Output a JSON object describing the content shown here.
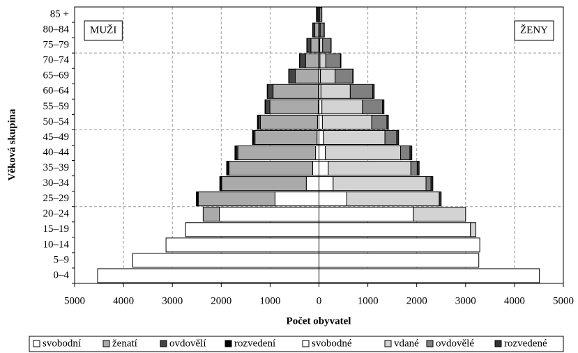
{
  "chart_data": {
    "type": "pyramid",
    "y_axis_label": "Věková skupina",
    "x_axis_label": "Počet obyvatel",
    "annotations": [
      {
        "text": "MUŽI",
        "side": "left"
      },
      {
        "text": "ŽENY",
        "side": "right"
      }
    ],
    "categories": [
      "0–4",
      "5–9",
      "10–14",
      "15–19",
      "20–24",
      "25–29",
      "30–34",
      "35–39",
      "40–44",
      "45–49",
      "50–54",
      "55–59",
      "60–64",
      "65–69",
      "70–74",
      "75–79",
      "80–84",
      "85 +"
    ],
    "series": [
      {
        "name": "svobodní",
        "color": "#ffffff",
        "side": "left",
        "values": [
          4530,
          3810,
          3130,
          2730,
          2040,
          900,
          260,
          130,
          70,
          40,
          30,
          15,
          10,
          5,
          5,
          5,
          5,
          5
        ]
      },
      {
        "name": "ženatí",
        "color": "#aaaaaa",
        "side": "left",
        "values": [
          0,
          0,
          0,
          0,
          330,
          1570,
          1730,
          1710,
          1590,
          1270,
          1170,
          990,
          930,
          480,
          270,
          160,
          80,
          20
        ]
      },
      {
        "name": "ovdovělí",
        "color": "#444444",
        "side": "left",
        "values": [
          0,
          0,
          0,
          0,
          0,
          10,
          10,
          10,
          30,
          30,
          40,
          90,
          110,
          130,
          120,
          80,
          40,
          30
        ]
      },
      {
        "name": "rozvedení",
        "color": "#000000",
        "side": "left",
        "values": [
          0,
          0,
          0,
          0,
          0,
          30,
          30,
          40,
          30,
          20,
          20,
          10,
          10,
          5,
          5,
          5,
          5,
          0
        ]
      },
      {
        "name": "svobodné",
        "color": "#ffffff",
        "side": "right",
        "values": [
          4510,
          3270,
          3290,
          3100,
          1930,
          570,
          290,
          190,
          130,
          90,
          70,
          60,
          40,
          30,
          20,
          15,
          5,
          5
        ]
      },
      {
        "name": "vdané",
        "color": "#d3d3d3",
        "side": "right",
        "values": [
          0,
          0,
          0,
          110,
          1070,
          1890,
          1900,
          1690,
          1540,
          1260,
          1010,
          830,
          600,
          300,
          120,
          60,
          20,
          5
        ]
      },
      {
        "name": "ovdovělé",
        "color": "#808080",
        "side": "right",
        "values": [
          0,
          0,
          0,
          0,
          0,
          0,
          100,
          130,
          190,
          240,
          310,
          410,
          460,
          360,
          300,
          170,
          80,
          50
        ]
      },
      {
        "name": "rozvedené",
        "color": "#333333",
        "side": "right",
        "values": [
          0,
          0,
          0,
          0,
          0,
          40,
          40,
          40,
          40,
          40,
          30,
          30,
          30,
          10,
          10,
          5,
          5,
          0
        ]
      }
    ],
    "xlim": [
      -5000,
      5000
    ],
    "xticks": [
      {
        "value": -5000,
        "label": "5000"
      },
      {
        "value": -4000,
        "label": "4000"
      },
      {
        "value": -3000,
        "label": "3000"
      },
      {
        "value": -2000,
        "label": "2000"
      },
      {
        "value": -1000,
        "label": "1000"
      },
      0,
      1000,
      2000,
      3000,
      4000,
      5000
    ],
    "grid": true,
    "legend": "bottom"
  }
}
